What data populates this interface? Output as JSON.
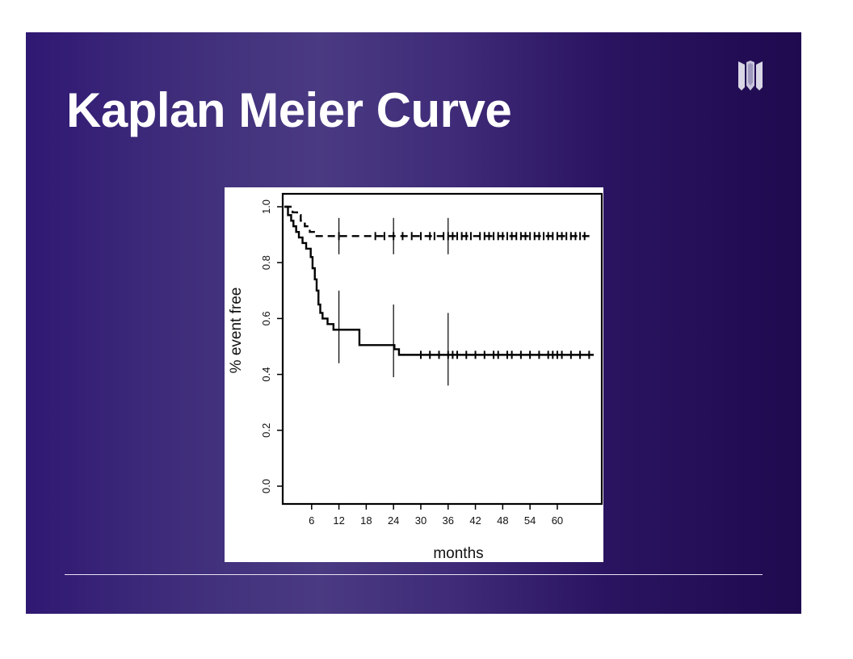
{
  "slide": {
    "title": "Kaplan Meier Curve",
    "logo_icon": "university-logo-icon",
    "background_colors": [
      "#2f1873",
      "#4a3a82",
      "#1f0a4f"
    ]
  },
  "chart_data": {
    "type": "line",
    "title": "",
    "xlabel": "months",
    "ylabel": "% event free",
    "xlim": [
      0,
      68
    ],
    "ylim": [
      0,
      1.0
    ],
    "x_ticks": [
      6,
      12,
      18,
      24,
      30,
      36,
      42,
      48,
      54,
      60
    ],
    "y_ticks": [
      "0.0",
      "0.2",
      "0.4",
      "0.6",
      "0.8",
      "1.0"
    ],
    "grid": false,
    "legend": "none",
    "series": [
      {
        "style": "dashed",
        "steps": [
          [
            0,
            1.0
          ],
          [
            1.8,
            0.98
          ],
          [
            2.8,
            0.97
          ],
          [
            3.6,
            0.95
          ],
          [
            4.5,
            0.93
          ],
          [
            5.6,
            0.91
          ],
          [
            6.8,
            0.895
          ],
          [
            68,
            0.895
          ]
        ],
        "censor_x": [
          12,
          20,
          22,
          24,
          26,
          28,
          30,
          32,
          33,
          35,
          36,
          37,
          38,
          39,
          40,
          41,
          43,
          44,
          45,
          46,
          47,
          48,
          49,
          50,
          51,
          52,
          53,
          54,
          55,
          56,
          57,
          58,
          59,
          60,
          61,
          62,
          63,
          64,
          65,
          66
        ],
        "ci_at": [
          [
            12,
            0.83,
            0.96
          ],
          [
            24,
            0.83,
            0.96
          ],
          [
            36,
            0.83,
            0.96
          ]
        ]
      },
      {
        "style": "solid",
        "steps": [
          [
            0,
            1.0
          ],
          [
            0.8,
            0.97
          ],
          [
            1.5,
            0.95
          ],
          [
            2.0,
            0.93
          ],
          [
            2.6,
            0.91
          ],
          [
            3.2,
            0.89
          ],
          [
            4.0,
            0.87
          ],
          [
            4.8,
            0.85
          ],
          [
            5.8,
            0.82
          ],
          [
            6.2,
            0.78
          ],
          [
            6.7,
            0.74
          ],
          [
            7.1,
            0.7
          ],
          [
            7.5,
            0.65
          ],
          [
            7.9,
            0.62
          ],
          [
            8.4,
            0.6
          ],
          [
            9.5,
            0.58
          ],
          [
            10.8,
            0.56
          ],
          [
            16.5,
            0.505
          ],
          [
            24.2,
            0.49
          ],
          [
            25.2,
            0.47
          ],
          [
            68,
            0.47
          ]
        ],
        "censor_x": [
          30,
          32,
          34,
          36,
          37,
          38,
          40,
          42,
          44,
          46,
          47,
          49,
          50,
          52,
          54,
          56,
          58,
          59,
          60,
          61,
          63,
          65,
          67
        ],
        "ci_at": [
          [
            12,
            0.44,
            0.7
          ],
          [
            24,
            0.39,
            0.65
          ],
          [
            36,
            0.36,
            0.62
          ]
        ]
      }
    ]
  }
}
